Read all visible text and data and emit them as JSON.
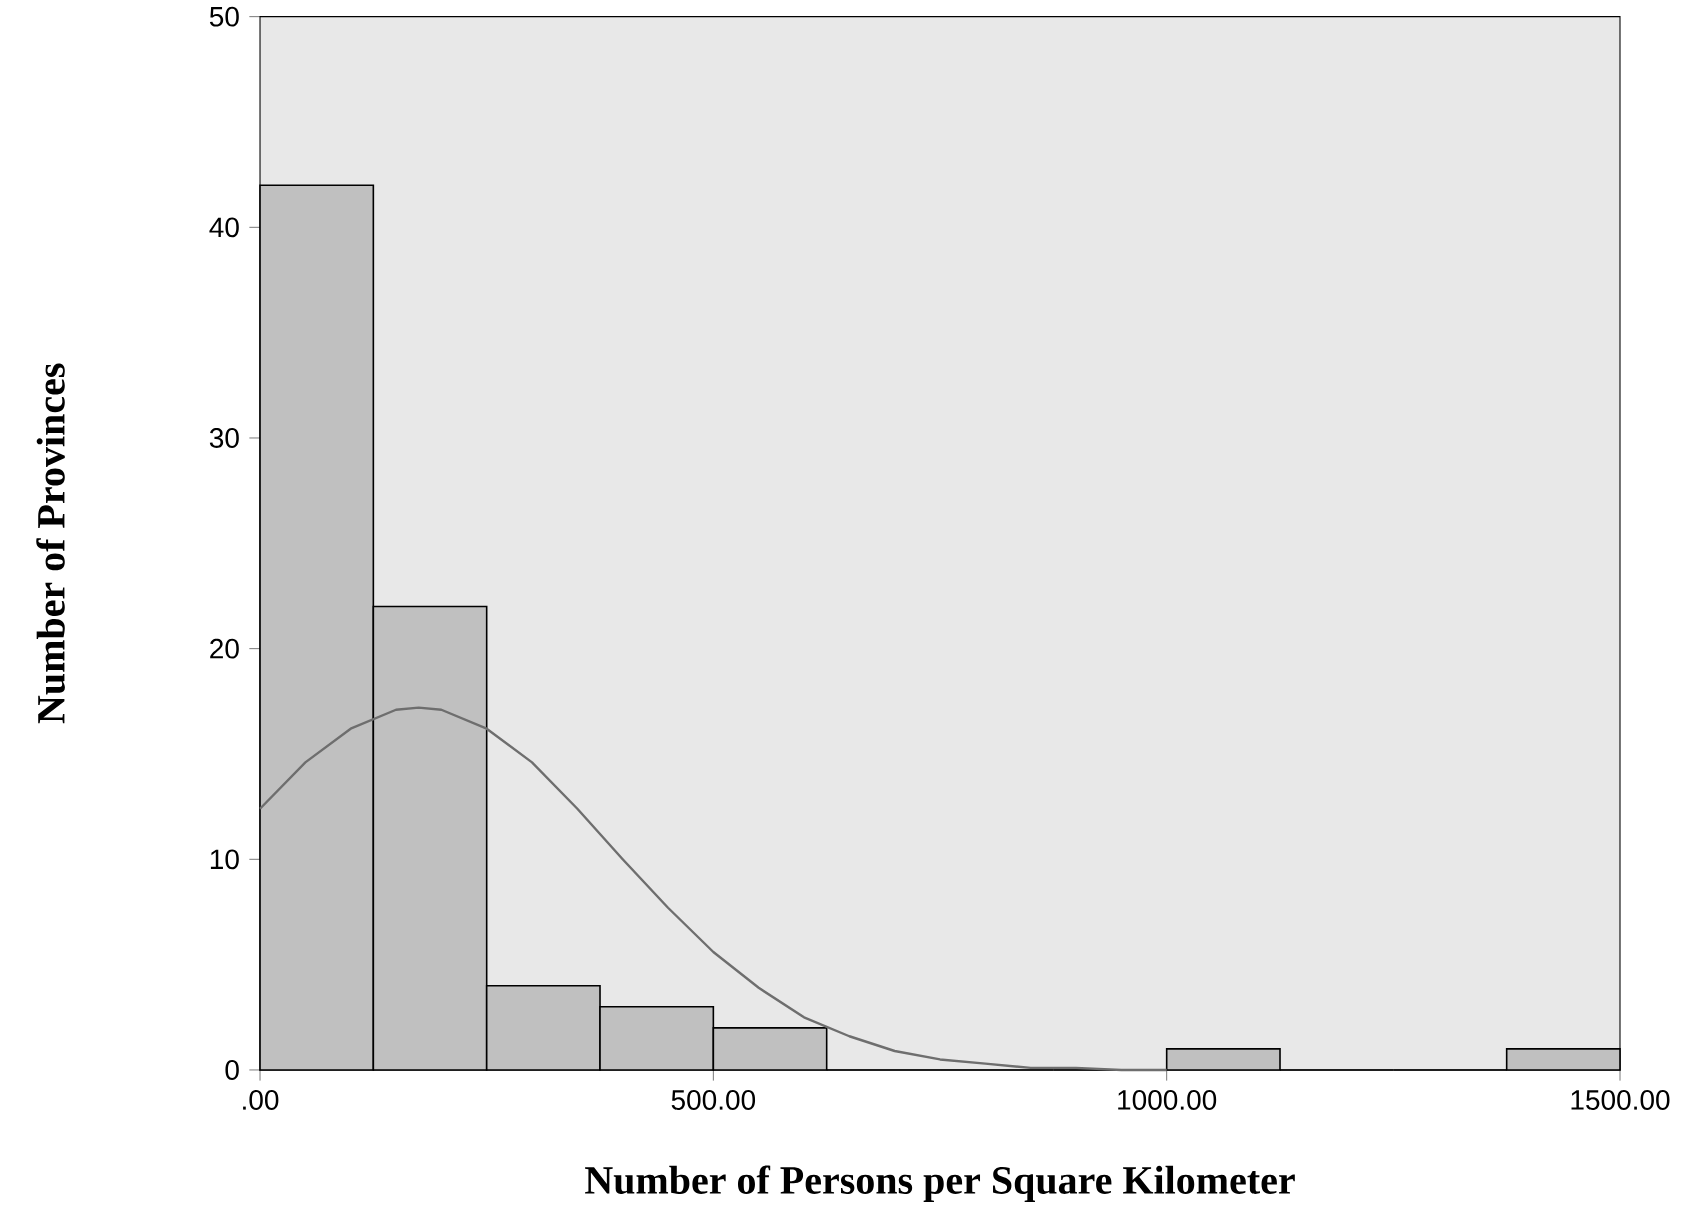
{
  "chart_data": {
    "type": "histogram",
    "xlabel": "Number of Persons per Square Kilometer",
    "ylabel": "Number of Provinces",
    "bins": [
      0,
      125,
      250,
      375,
      500,
      625,
      750,
      875,
      1000,
      1125,
      1250,
      1375,
      1500
    ],
    "values": [
      42,
      22,
      4,
      3,
      2,
      0,
      0,
      0,
      1,
      0,
      0,
      1
    ],
    "color": "#c0c0c0",
    "series": [
      {
        "type": "line",
        "color": "#6e6e6e",
        "x": [
          0,
          50,
          100,
          150,
          175,
          200,
          250,
          300,
          350,
          400,
          450,
          500,
          550,
          600,
          650,
          700,
          750,
          800,
          850,
          900,
          950,
          1000
        ],
        "values": [
          12.4,
          14.6,
          16.2,
          17.1,
          17.2,
          17.1,
          16.2,
          14.6,
          12.4,
          10.0,
          7.7,
          5.6,
          3.9,
          2.5,
          1.6,
          0.9,
          0.5,
          0.3,
          0.1,
          0.1,
          0,
          0
        ]
      }
    ],
    "xlim": [
      0,
      1500
    ],
    "ylim": [
      0,
      50
    ],
    "xticks": [
      {
        "value": 0,
        "label": ".00"
      },
      {
        "value": 500,
        "label": "500.00"
      },
      {
        "value": 1000,
        "label": "1000.00"
      },
      {
        "value": 1500,
        "label": "1500.00"
      }
    ],
    "yticks": [
      0,
      10,
      20,
      30,
      40,
      50
    ]
  }
}
